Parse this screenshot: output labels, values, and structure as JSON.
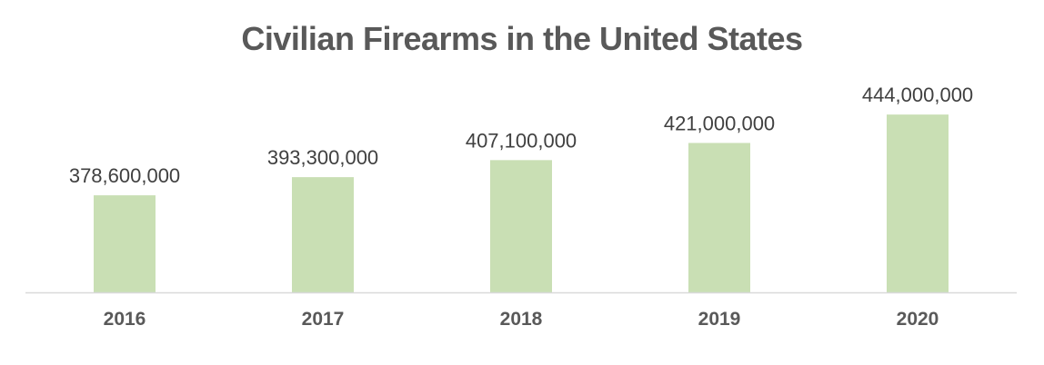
{
  "chart_data": {
    "type": "bar",
    "title": "Civilian Firearms in the United States",
    "categories": [
      "2016",
      "2017",
      "2018",
      "2019",
      "2020"
    ],
    "values": [
      378600000,
      393300000,
      407100000,
      421000000,
      444000000
    ],
    "data_labels": [
      "378,600,000",
      "393,300,000",
      "407,100,000",
      "421,000,000",
      "444,000,000"
    ],
    "xlabel": "",
    "ylabel": "",
    "ylim": [
      300000000,
      450000000
    ],
    "grid": false,
    "legend": "none",
    "colors": {
      "bar": "#c9dfb4",
      "axis": "#d9d9d9",
      "title": "#595959"
    }
  }
}
